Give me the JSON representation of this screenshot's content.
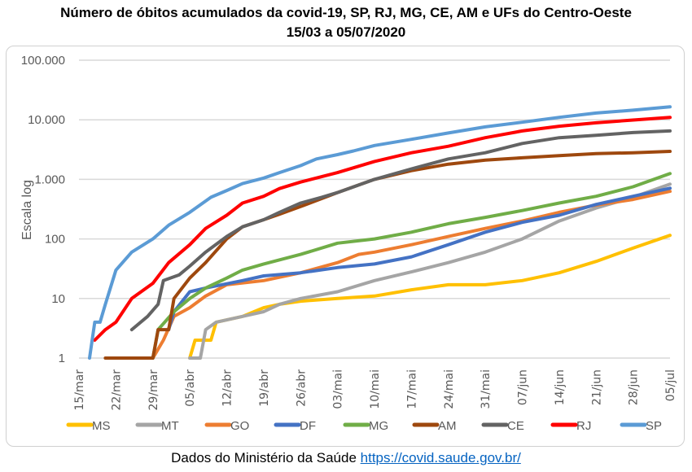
{
  "chart_data": {
    "type": "line",
    "title": "Número de óbitos acumulados da covid-19, SP, RJ, MG, CE, AM e UFs do Centro-Oeste",
    "subtitle": "15/03 a 05/07/2020",
    "xlabel": "",
    "ylabel": "Escala log",
    "yscale": "log",
    "ylim": [
      1,
      100000
    ],
    "y_ticks": [
      1,
      10,
      100,
      1000,
      10000,
      100000
    ],
    "y_tick_labels": [
      "1",
      "10",
      "100",
      "1.000",
      "10.000",
      "100.000"
    ],
    "x_unit": "days since 15/mar",
    "xlim": [
      0,
      112
    ],
    "x_ticks": [
      0,
      7,
      14,
      21,
      28,
      35,
      42,
      49,
      56,
      63,
      70,
      77,
      84,
      91,
      98,
      105,
      112
    ],
    "x_tick_labels": [
      "15/mar",
      "22/mar",
      "29/mar",
      "05/abr",
      "12/abr",
      "19/abr",
      "26/abr",
      "03/mai",
      "10/mai",
      "17/mai",
      "24/mai",
      "31/mai",
      "07/jun",
      "14/jun",
      "21/jun",
      "28/jun",
      "05/jul"
    ],
    "grid": true,
    "legend_position": "bottom",
    "series": [
      {
        "name": "MS",
        "color": "#ffc000",
        "x": [
          21,
          22,
          25,
          26,
          31,
          35,
          38,
          42,
          49,
          56,
          63,
          70,
          77,
          84,
          91,
          98,
          105,
          112
        ],
        "y": [
          1,
          2,
          2,
          4,
          5,
          7,
          8,
          9,
          10,
          11,
          14,
          17,
          17,
          20,
          27,
          42,
          70,
          115
        ]
      },
      {
        "name": "MT",
        "color": "#a5a5a5",
        "x": [
          21,
          23,
          24,
          26,
          31,
          35,
          38,
          42,
          49,
          56,
          63,
          70,
          77,
          84,
          91,
          98,
          105,
          112
        ],
        "y": [
          1,
          1,
          3,
          4,
          5,
          6,
          8,
          10,
          13,
          20,
          28,
          40,
          60,
          100,
          200,
          330,
          500,
          830
        ]
      },
      {
        "name": "GO",
        "color": "#ed7d31",
        "x": [
          14,
          16,
          18,
          21,
          24,
          28,
          35,
          42,
          49,
          53,
          56,
          63,
          70,
          77,
          84,
          91,
          98,
          105,
          112
        ],
        "y": [
          1,
          2,
          5,
          7,
          11,
          17,
          20,
          27,
          40,
          55,
          60,
          80,
          110,
          150,
          200,
          280,
          370,
          460,
          630
        ]
      },
      {
        "name": "DF",
        "color": "#4472c4",
        "x": [
          17,
          18,
          21,
          24,
          31,
          35,
          42,
          49,
          56,
          63,
          70,
          77,
          84,
          91,
          98,
          105,
          112
        ],
        "y": [
          3,
          6,
          13,
          15,
          20,
          24,
          27,
          33,
          38,
          50,
          80,
          130,
          190,
          250,
          380,
          520,
          710
        ]
      },
      {
        "name": "MG",
        "color": "#70ad47",
        "x": [
          14,
          15,
          18,
          21,
          24,
          28,
          31,
          35,
          42,
          49,
          56,
          63,
          70,
          77,
          84,
          91,
          98,
          105,
          112
        ],
        "y": [
          1,
          3,
          6,
          10,
          15,
          22,
          30,
          38,
          55,
          85,
          100,
          130,
          180,
          230,
          300,
          400,
          520,
          750,
          1250
        ]
      },
      {
        "name": "AM",
        "color": "#9e480e",
        "x": [
          5,
          14,
          15,
          17,
          18,
          21,
          24,
          28,
          31,
          35,
          38,
          42,
          49,
          56,
          63,
          70,
          77,
          84,
          91,
          98,
          105,
          112
        ],
        "y": [
          1,
          1,
          3,
          3,
          10,
          22,
          40,
          100,
          160,
          210,
          260,
          350,
          600,
          1000,
          1400,
          1800,
          2100,
          2300,
          2500,
          2700,
          2800,
          2950
        ]
      },
      {
        "name": "CE",
        "color": "#636363",
        "x": [
          10,
          13,
          15,
          16,
          19,
          21,
          24,
          28,
          31,
          35,
          38,
          42,
          46,
          49,
          56,
          63,
          70,
          77,
          84,
          91,
          98,
          105,
          112
        ],
        "y": [
          3,
          5,
          8,
          20,
          25,
          35,
          60,
          110,
          160,
          210,
          280,
          400,
          500,
          600,
          1000,
          1500,
          2200,
          2800,
          4000,
          5000,
          5500,
          6100,
          6500
        ]
      },
      {
        "name": "RJ",
        "color": "#ff0000",
        "x": [
          3,
          5,
          7,
          10,
          14,
          17,
          21,
          24,
          28,
          31,
          35,
          38,
          42,
          49,
          56,
          63,
          70,
          77,
          84,
          91,
          98,
          105,
          112
        ],
        "y": [
          2,
          3,
          4,
          10,
          18,
          40,
          80,
          150,
          250,
          400,
          520,
          700,
          900,
          1300,
          2000,
          2800,
          3600,
          5000,
          6500,
          7800,
          8900,
          9900,
          11000
        ]
      },
      {
        "name": "SP",
        "color": "#5b9bd5",
        "x": [
          2,
          3,
          4,
          5,
          7,
          10,
          14,
          17,
          21,
          25,
          28,
          31,
          35,
          38,
          42,
          45,
          49,
          52,
          56,
          63,
          70,
          77,
          84,
          91,
          98,
          105,
          112
        ],
        "y": [
          1,
          4,
          4,
          8,
          30,
          60,
          100,
          170,
          280,
          500,
          650,
          850,
          1050,
          1300,
          1700,
          2200,
          2600,
          3000,
          3700,
          4700,
          6000,
          7600,
          9100,
          11000,
          13000,
          14500,
          16500
        ]
      }
    ]
  },
  "footer": {
    "source_text": "Dados do Ministério da Saúde",
    "link_text": "https://covid.saude.gov.br/"
  }
}
